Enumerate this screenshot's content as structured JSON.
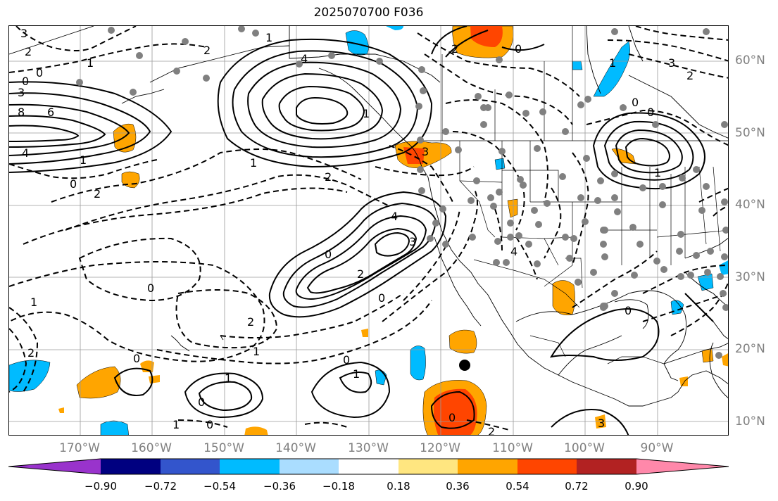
{
  "title": "2025070700 F036",
  "lat_labels": [
    "60°N",
    "50°N",
    "40°N",
    "30°N",
    "20°N",
    "10°N"
  ],
  "lon_labels": [
    "170°W",
    "160°W",
    "150°W",
    "140°W",
    "130°W",
    "120°W",
    "110°W",
    "100°W",
    "90°W"
  ],
  "colorbar": {
    "ticks": [
      "−0.90",
      "−0.72",
      "−0.54",
      "−0.36",
      "−0.18",
      "0.18",
      "0.36",
      "0.54",
      "0.72",
      "0.90"
    ],
    "colors": [
      "#9933cc",
      "#000080",
      "#3355cc",
      "#00bbff",
      "#aaddff",
      "#ffffff",
      "#ffe680",
      "#ffa500",
      "#ff4500",
      "#b22222",
      "#ff88aa"
    ]
  },
  "contour_labels": [
    "3",
    "2",
    "0",
    "1",
    "2",
    "0",
    "3",
    "8",
    "6",
    "4",
    "1",
    "0",
    "2",
    "4",
    "1",
    "1",
    "1",
    "2",
    "0",
    "4",
    "2",
    "0",
    "0",
    "2",
    "3",
    "1",
    "2",
    "1",
    "0",
    "1",
    "1",
    "0",
    "0",
    "1",
    "0",
    "3",
    "2",
    "4",
    "0",
    "3",
    "0",
    "2",
    "1",
    "0",
    "1",
    "0",
    "0",
    "3",
    "2"
  ],
  "cyclone_marker": {
    "lat": 17.5,
    "lon": -116.5
  }
}
